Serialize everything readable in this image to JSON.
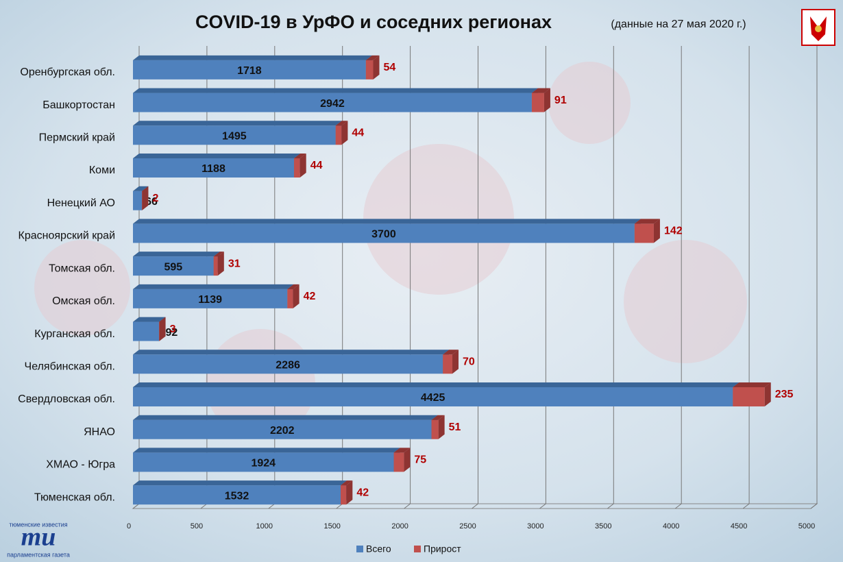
{
  "chart_data": {
    "type": "bar",
    "orientation": "horizontal",
    "stacked": true,
    "title": "COVID-19 в УрФО и соседних регионах",
    "subtitle": "(данные  на 27 мая 2020 г.)",
    "categories": [
      "Оренбургская обл.",
      "Башкортостан",
      "Пермский край",
      "Коми",
      "Ненецкий АО",
      "Красноярский край",
      "Томская обл.",
      "Омская обл.",
      "Курганская обл.",
      "Челябинская обл.",
      "Свердловская обл.",
      "ЯНАО",
      "ХМАО - Югра",
      "Тюменская обл."
    ],
    "series": [
      {
        "name": "Всего",
        "color": "#4f81bd",
        "values": [
          1718,
          2942,
          1495,
          1188,
          66,
          3700,
          595,
          1139,
          192,
          2286,
          4425,
          2202,
          1924,
          1532
        ]
      },
      {
        "name": "Прирост",
        "color": "#c0504d",
        "values": [
          54,
          91,
          44,
          44,
          2,
          142,
          31,
          42,
          3,
          70,
          235,
          51,
          75,
          42
        ]
      }
    ],
    "xlim": [
      0,
      5000
    ],
    "xticks": [
      0,
      500,
      1000,
      1500,
      2000,
      2500,
      3000,
      3500,
      4000,
      4500,
      5000
    ],
    "grid": true,
    "legend": "bottom",
    "logo": {
      "top": "тюменские известия",
      "mark": "ти",
      "bottom": "парламентская газета"
    }
  }
}
